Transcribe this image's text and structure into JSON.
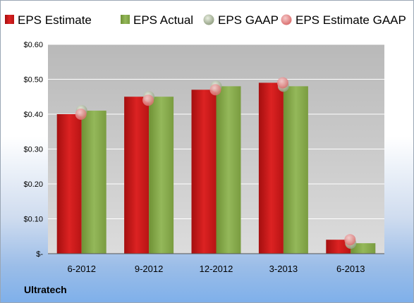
{
  "company": "Ultratech",
  "colors": {
    "estimate": "#cc1a1a",
    "actual": "#86a84b",
    "gaap": "#9aa88c",
    "estimate_gaap": "#e07b7b"
  },
  "chart_data": {
    "type": "bar",
    "categories": [
      "6-2012",
      "9-2012",
      "12-2012",
      "3-2013",
      "6-2013"
    ],
    "series": [
      {
        "name": "EPS Estimate",
        "values": [
          0.4,
          0.45,
          0.47,
          0.49,
          0.04
        ]
      },
      {
        "name": "EPS Actual",
        "values": [
          0.41,
          0.45,
          0.48,
          0.48,
          0.03
        ]
      }
    ],
    "markers": [
      {
        "name": "EPS GAAP",
        "values": [
          0.41,
          0.45,
          0.48,
          0.48,
          0.03
        ]
      },
      {
        "name": "EPS Estimate GAAP",
        "values": [
          0.4,
          0.44,
          0.47,
          0.49,
          0.04
        ]
      }
    ],
    "yticks": [
      {
        "value": 0.6,
        "label": "$0.60"
      },
      {
        "value": 0.5,
        "label": "$0.50"
      },
      {
        "value": 0.4,
        "label": "$0.40"
      },
      {
        "value": 0.3,
        "label": "$0.30"
      },
      {
        "value": 0.2,
        "label": "$0.20"
      },
      {
        "value": 0.1,
        "label": "$0.10"
      },
      {
        "value": 0.0,
        "label": "$-"
      }
    ],
    "ylim": [
      0,
      0.6
    ],
    "grid": true,
    "legend": "top"
  }
}
